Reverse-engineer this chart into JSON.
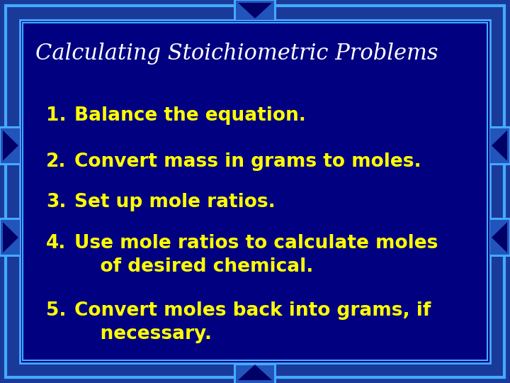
{
  "title": "Calculating Stoichiometric Problems",
  "title_color": "#FFFFFF",
  "title_fontsize": 22,
  "items": [
    "1.  Balance the equation.",
    "2.  Convert mass in grams to moles.",
    "3.  Set up mole ratios.",
    "4.  Use mole ratios to calculate moles\n     of desired chemical.",
    "5.  Convert moles back into grams, if\n     necessary."
  ],
  "item_color": "#FFFF00",
  "item_fontsize": 19,
  "bg_outer": "#1A3A9A",
  "bg_inner": "#000080",
  "border_color_bright": "#44AAFF",
  "border_color_medium": "#2266CC",
  "ornament_bright": "#44AAFF",
  "ornament_mid": "#2255BB",
  "ornament_dark": "#000066",
  "fig_width": 7.2,
  "fig_height": 5.4,
  "dpi": 100
}
